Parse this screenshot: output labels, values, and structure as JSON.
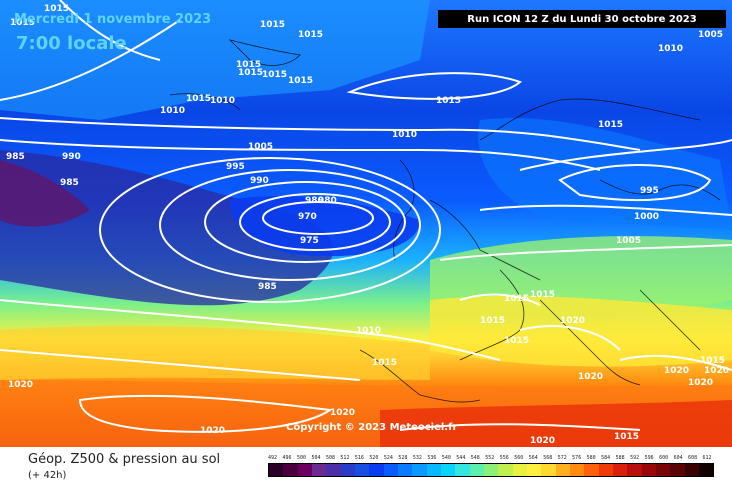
{
  "header": {
    "date": "Mercredi 1 novembre 2023",
    "time": "7:00 locale",
    "run": "Run ICON 12 Z du Lundi 30 octobre 2023"
  },
  "footer": {
    "product": "Géop. Z500 & pression au sol",
    "lead": "(+ 42h)",
    "copyright": "Copyright © 2023 Meteociel.fr",
    "scale_labels": [
      "492",
      "496",
      "500",
      "504",
      "508",
      "512",
      "516",
      "520",
      "524",
      "528",
      "532",
      "536",
      "540",
      "544",
      "548",
      "552",
      "556",
      "560",
      "564",
      "568",
      "572",
      "576",
      "580",
      "584",
      "588",
      "592",
      "596",
      "600",
      "604",
      "608",
      "612"
    ],
    "scale_colors": [
      "#2a0026",
      "#4a003c",
      "#6b0060",
      "#6a2a90",
      "#4b2fa8",
      "#2c3ac8",
      "#1a4ee0",
      "#0a3cf0",
      "#0a5cff",
      "#0a7aff",
      "#0a9aff",
      "#0ab8ff",
      "#0ad4f8",
      "#33e6e0",
      "#5cf0b0",
      "#8cf078",
      "#bff050",
      "#e8f040",
      "#fff040",
      "#ffd830",
      "#ffb020",
      "#ff8a10",
      "#ff6010",
      "#f03a0a",
      "#d8200a",
      "#b8100a",
      "#980808",
      "#780606",
      "#580404",
      "#380202",
      "#100000"
    ]
  },
  "map": {
    "pressure_labels": [
      "1015",
      "1015",
      "1015",
      "1015",
      "1015",
      "1015",
      "1015",
      "1015",
      "1010",
      "1015",
      "1010",
      "1015",
      "1005",
      "995",
      "990",
      "980",
      "990",
      "985",
      "985",
      "980",
      "970",
      "975",
      "985",
      "1010",
      "1015",
      "1015",
      "1015",
      "1010",
      "1015",
      "1020",
      "1015",
      "1015",
      "1020",
      "1020",
      "1020",
      "1020",
      "1020",
      "1020",
      "1020",
      "1015",
      "995",
      "1000",
      "1005",
      "1010",
      "1005",
      "1015",
      "1020"
    ]
  }
}
